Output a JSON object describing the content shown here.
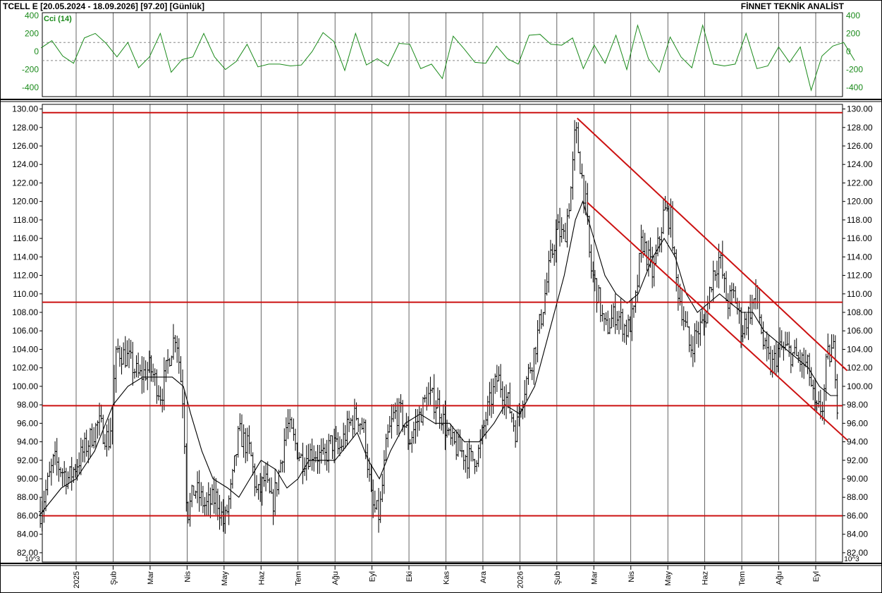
{
  "header": {
    "symbol": "TCELL E",
    "range": "[20.05.2024 - 18.09.2026]",
    "last": "[97.20]",
    "period": "[Günlük]",
    "brand": "FİNNET TEKNİK ANALİST"
  },
  "chart_data": [
    {
      "type": "line",
      "name": "Cci (14)",
      "color": "#1a8a1a",
      "ylim": [
        -500,
        430
      ],
      "yticks": [
        400,
        200,
        0,
        -200,
        -400
      ],
      "reference_lines": [
        100,
        -100
      ],
      "x_month_index": [
        0,
        1,
        2,
        3,
        4,
        5,
        6,
        7,
        8,
        9,
        10,
        11,
        12,
        13,
        14,
        15,
        16,
        17,
        18,
        19,
        20,
        21,
        22,
        23,
        24
      ],
      "values": [
        40,
        120,
        -50,
        -130,
        150,
        200,
        90,
        -60,
        100,
        -180,
        -60,
        200,
        -230,
        -90,
        -60,
        200,
        -60,
        -200,
        -110,
        80,
        -170,
        -140,
        -140,
        -160,
        -150,
        0,
        210,
        110,
        -210,
        200,
        -150,
        -80,
        -160,
        90,
        80,
        -190,
        -140,
        -300,
        170,
        30,
        -120,
        -130,
        60,
        -80,
        -140,
        180,
        190,
        80,
        70,
        150,
        -190,
        70,
        -130,
        180,
        -200,
        290,
        -80,
        -230,
        160,
        -60,
        -180,
        290,
        -140,
        -160,
        -140,
        200,
        -190,
        -160,
        50,
        -120,
        50,
        -430,
        -50,
        60,
        100,
        -100
      ]
    },
    {
      "type": "ohlc",
      "name": "TCELL E",
      "ylim": [
        81,
        130.5
      ],
      "yticks": [
        "130.00",
        "128.00",
        "126.00",
        "124.00",
        "122.00",
        "120.00",
        "118.00",
        "116.00",
        "114.00",
        "112.00",
        "110.00",
        "108.00",
        "106.00",
        "104.00",
        "102.00",
        "100.00",
        "98.00",
        "96.00",
        "94.00",
        "92.00",
        "90.00",
        "88.00",
        "86.00",
        "84.00",
        "82.00"
      ],
      "ytick_values": [
        130,
        128,
        126,
        124,
        122,
        120,
        118,
        116,
        114,
        112,
        110,
        108,
        106,
        104,
        102,
        100,
        98,
        96,
        94,
        92,
        90,
        88,
        86,
        84,
        82
      ],
      "scale_label": "10^3",
      "x_month_labels": [
        "2025",
        "Şub",
        "Mar",
        "Nis",
        "May",
        "Haz",
        "Tem",
        "Ağu",
        "Eyl",
        "Eki",
        "Kas",
        "Ara",
        "2026",
        "Şub",
        "Mar",
        "Nis",
        "May",
        "Haz",
        "Tem",
        "Ağu",
        "Eyl"
      ],
      "close_path": [
        [
          -1.0,
          86
        ],
        [
          -0.6,
          92
        ],
        [
          -0.2,
          90
        ],
        [
          0.2,
          93
        ],
        [
          0.6,
          96
        ],
        [
          0.9,
          94
        ],
        [
          1.1,
          104
        ],
        [
          1.4,
          103
        ],
        [
          1.7,
          101
        ],
        [
          2.0,
          102
        ],
        [
          2.3,
          99
        ],
        [
          2.5,
          103
        ],
        [
          2.7,
          106
        ],
        [
          2.9,
          98
        ],
        [
          3.0,
          86
        ],
        [
          3.2,
          89
        ],
        [
          3.5,
          87
        ],
        [
          3.8,
          88
        ],
        [
          4.0,
          85
        ],
        [
          4.2,
          89
        ],
        [
          4.4,
          95
        ],
        [
          4.7,
          93
        ],
        [
          4.9,
          88
        ],
        [
          5.1,
          90
        ],
        [
          5.3,
          87
        ],
        [
          5.5,
          91
        ],
        [
          5.7,
          96
        ],
        [
          5.9,
          94
        ],
        [
          6.1,
          92
        ],
        [
          6.4,
          93
        ],
        [
          6.7,
          92
        ],
        [
          6.9,
          94
        ],
        [
          7.1,
          93
        ],
        [
          7.4,
          96
        ],
        [
          7.6,
          97
        ],
        [
          7.8,
          95
        ],
        [
          8.0,
          87
        ],
        [
          8.2,
          86
        ],
        [
          8.4,
          94
        ],
        [
          8.6,
          97
        ],
        [
          8.8,
          97
        ],
        [
          9.0,
          94
        ],
        [
          9.2,
          96
        ],
        [
          9.5,
          99
        ],
        [
          9.8,
          98
        ],
        [
          10.1,
          94
        ],
        [
          10.4,
          93
        ],
        [
          10.7,
          92
        ],
        [
          10.9,
          93
        ],
        [
          11.1,
          97
        ],
        [
          11.4,
          101
        ],
        [
          11.7,
          98
        ],
        [
          11.9,
          95
        ],
        [
          12.0,
          98
        ],
        [
          12.2,
          101
        ],
        [
          12.4,
          104
        ],
        [
          12.6,
          108
        ],
        [
          12.8,
          113
        ],
        [
          13.0,
          117
        ],
        [
          13.2,
          116
        ],
        [
          13.4,
          122
        ],
        [
          13.5,
          128
        ],
        [
          13.6,
          125
        ],
        [
          13.7,
          122
        ],
        [
          13.8,
          119
        ],
        [
          13.9,
          113
        ],
        [
          14.1,
          110
        ],
        [
          14.3,
          106
        ],
        [
          14.6,
          108
        ],
        [
          14.9,
          106
        ],
        [
          15.1,
          108
        ],
        [
          15.3,
          116
        ],
        [
          15.6,
          112
        ],
        [
          15.9,
          119
        ],
        [
          16.1,
          118
        ],
        [
          16.2,
          112
        ],
        [
          16.4,
          108
        ],
        [
          16.6,
          104
        ],
        [
          16.8,
          106
        ],
        [
          17.0,
          107
        ],
        [
          17.2,
          112
        ],
        [
          17.4,
          114
        ],
        [
          17.6,
          109
        ],
        [
          17.8,
          110
        ],
        [
          18.0,
          106
        ],
        [
          18.2,
          108
        ],
        [
          18.4,
          110
        ],
        [
          18.6,
          104
        ],
        [
          18.8,
          102
        ],
        [
          19.0,
          104
        ],
        [
          19.2,
          104
        ],
        [
          19.5,
          103
        ],
        [
          19.8,
          102
        ],
        [
          20.0,
          97
        ],
        [
          20.2,
          98
        ],
        [
          20.3,
          103
        ],
        [
          20.5,
          104
        ],
        [
          20.6,
          97
        ]
      ],
      "moving_average": [
        [
          -1.0,
          86
        ],
        [
          -0.4,
          89
        ],
        [
          0.0,
          90
        ],
        [
          0.5,
          93
        ],
        [
          1.0,
          98
        ],
        [
          1.4,
          100
        ],
        [
          1.8,
          101
        ],
        [
          2.2,
          101
        ],
        [
          2.6,
          101
        ],
        [
          2.9,
          100
        ],
        [
          3.1,
          97
        ],
        [
          3.4,
          93
        ],
        [
          3.7,
          90
        ],
        [
          4.1,
          89
        ],
        [
          4.4,
          88
        ],
        [
          4.7,
          90
        ],
        [
          5.0,
          92
        ],
        [
          5.4,
          91
        ],
        [
          5.7,
          89
        ],
        [
          6.0,
          90
        ],
        [
          6.3,
          92
        ],
        [
          6.7,
          92
        ],
        [
          7.0,
          92
        ],
        [
          7.4,
          94
        ],
        [
          7.6,
          95
        ],
        [
          7.9,
          92
        ],
        [
          8.2,
          90
        ],
        [
          8.5,
          93
        ],
        [
          8.9,
          96
        ],
        [
          9.3,
          97
        ],
        [
          9.7,
          96
        ],
        [
          10.1,
          96
        ],
        [
          10.5,
          94
        ],
        [
          10.9,
          94
        ],
        [
          11.3,
          96
        ],
        [
          11.6,
          98
        ],
        [
          12.0,
          97
        ],
        [
          12.4,
          100
        ],
        [
          12.8,
          106
        ],
        [
          13.2,
          112
        ],
        [
          13.5,
          118
        ],
        [
          13.7,
          120
        ],
        [
          14.0,
          116
        ],
        [
          14.3,
          112
        ],
        [
          14.6,
          110
        ],
        [
          14.9,
          109
        ],
        [
          15.2,
          110
        ],
        [
          15.6,
          114
        ],
        [
          15.9,
          116
        ],
        [
          16.2,
          114
        ],
        [
          16.5,
          110
        ],
        [
          16.8,
          108
        ],
        [
          17.1,
          109
        ],
        [
          17.4,
          110
        ],
        [
          17.7,
          109
        ],
        [
          18.0,
          108
        ],
        [
          18.3,
          108
        ],
        [
          18.6,
          106
        ],
        [
          18.9,
          105
        ],
        [
          19.2,
          104
        ],
        [
          19.5,
          103
        ],
        [
          19.8,
          102
        ],
        [
          20.1,
          100
        ],
        [
          20.4,
          99
        ],
        [
          20.6,
          99
        ]
      ],
      "horizontal_lines": [
        129.6,
        109.1,
        97.9,
        86.0
      ],
      "trendlines": [
        {
          "from": [
            13.55,
            129.0
          ],
          "to": [
            20.85,
            101.7
          ]
        },
        {
          "from": [
            13.82,
            119.9
          ],
          "to": [
            20.85,
            94.2
          ]
        }
      ]
    }
  ],
  "colors": {
    "price": "#000000",
    "cci": "#1a8a1a",
    "levels": "#cc1111",
    "grid": "#000000"
  }
}
